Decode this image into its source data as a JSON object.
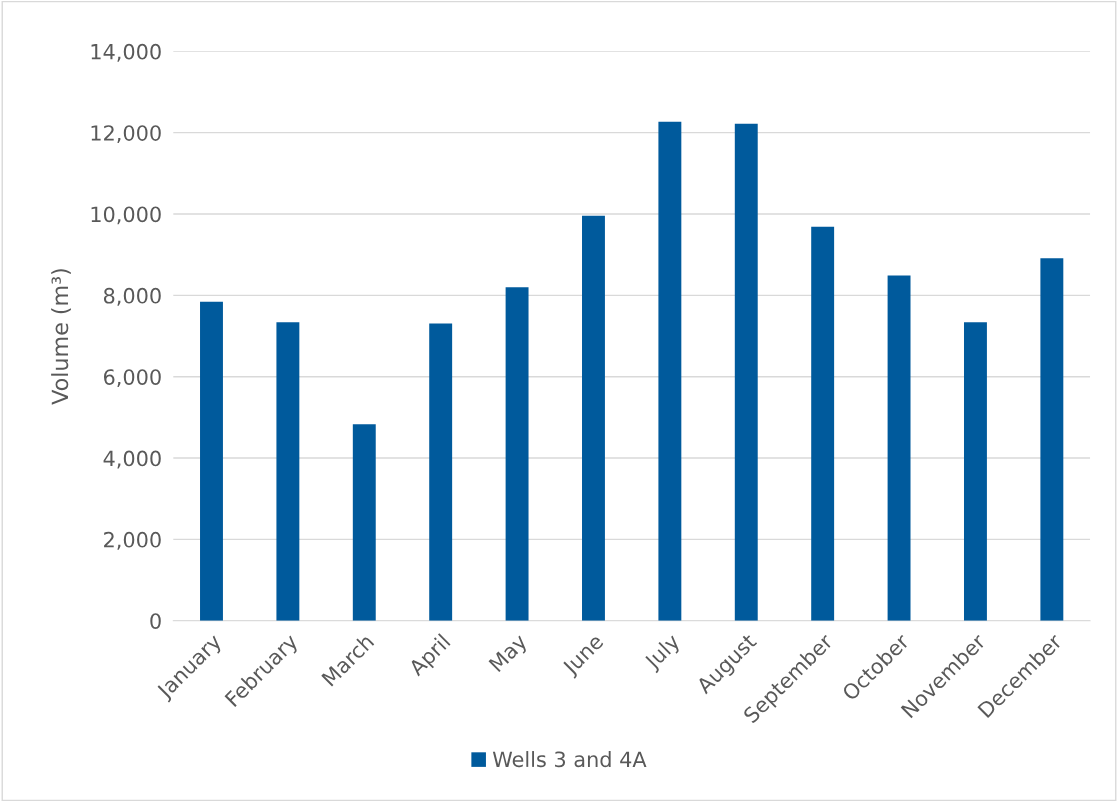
{
  "chart_data": {
    "type": "bar",
    "ylabel": "Volume (m³)",
    "categories": [
      "January",
      "February",
      "March",
      "April",
      "May",
      "June",
      "July",
      "August",
      "September",
      "October",
      "November",
      "December"
    ],
    "series": [
      {
        "name": "Wells 3 and 4A",
        "color": "#005a9c",
        "values": [
          7840,
          7340,
          4830,
          7310,
          8200,
          9960,
          12270,
          12220,
          9690,
          8490,
          7340,
          8910
        ]
      }
    ],
    "ylim": [
      0,
      14000
    ],
    "yticks": [
      {
        "value": 0,
        "label": "0"
      },
      {
        "value": 2000,
        "label": "2,000"
      },
      {
        "value": 4000,
        "label": "4,000"
      },
      {
        "value": 6000,
        "label": "6,000"
      },
      {
        "value": 8000,
        "label": "8,000"
      },
      {
        "value": 10000,
        "label": "10,000"
      },
      {
        "value": 12000,
        "label": "12,000"
      },
      {
        "value": 14000,
        "label": "14,000"
      }
    ],
    "grid": "y",
    "legend": "bottom"
  }
}
